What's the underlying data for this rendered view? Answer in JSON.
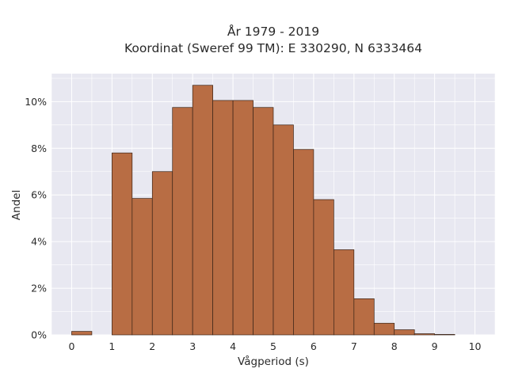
{
  "chart_data": {
    "type": "bar",
    "title": "År 1979 - 2019",
    "subtitle": "Koordinat (Sweref 99 TM): E 330290, N 6333464",
    "xlabel": "Vågperiod (s)",
    "ylabel": "Andel",
    "xlim": [
      -0.5,
      10.5
    ],
    "ylim": [
      0,
      11.2
    ],
    "xticks": [
      0,
      1,
      2,
      3,
      4,
      5,
      6,
      7,
      8,
      9,
      10
    ],
    "yticks": [
      0,
      2,
      4,
      6,
      8,
      10
    ],
    "ytick_suffix": "%",
    "grid": true,
    "bin_width": 0.5,
    "bins": [
      {
        "start": 0.0,
        "value": 0.15
      },
      {
        "start": 1.0,
        "value": 7.8
      },
      {
        "start": 1.5,
        "value": 5.85
      },
      {
        "start": 2.0,
        "value": 7.0
      },
      {
        "start": 2.5,
        "value": 9.75
      },
      {
        "start": 3.0,
        "value": 10.7
      },
      {
        "start": 3.5,
        "value": 10.05
      },
      {
        "start": 4.0,
        "value": 10.05
      },
      {
        "start": 4.5,
        "value": 9.75
      },
      {
        "start": 5.0,
        "value": 9.0
      },
      {
        "start": 5.5,
        "value": 7.95
      },
      {
        "start": 6.0,
        "value": 5.8
      },
      {
        "start": 6.5,
        "value": 3.65
      },
      {
        "start": 7.0,
        "value": 1.55
      },
      {
        "start": 7.5,
        "value": 0.5
      },
      {
        "start": 8.0,
        "value": 0.22
      },
      {
        "start": 8.5,
        "value": 0.05
      },
      {
        "start": 9.0,
        "value": 0.02
      }
    ],
    "colors": {
      "bar": "#b86d44",
      "bar_edge": "#3a2418",
      "plot_bg": "#e8e8f1",
      "grid": "#ffffff"
    }
  }
}
